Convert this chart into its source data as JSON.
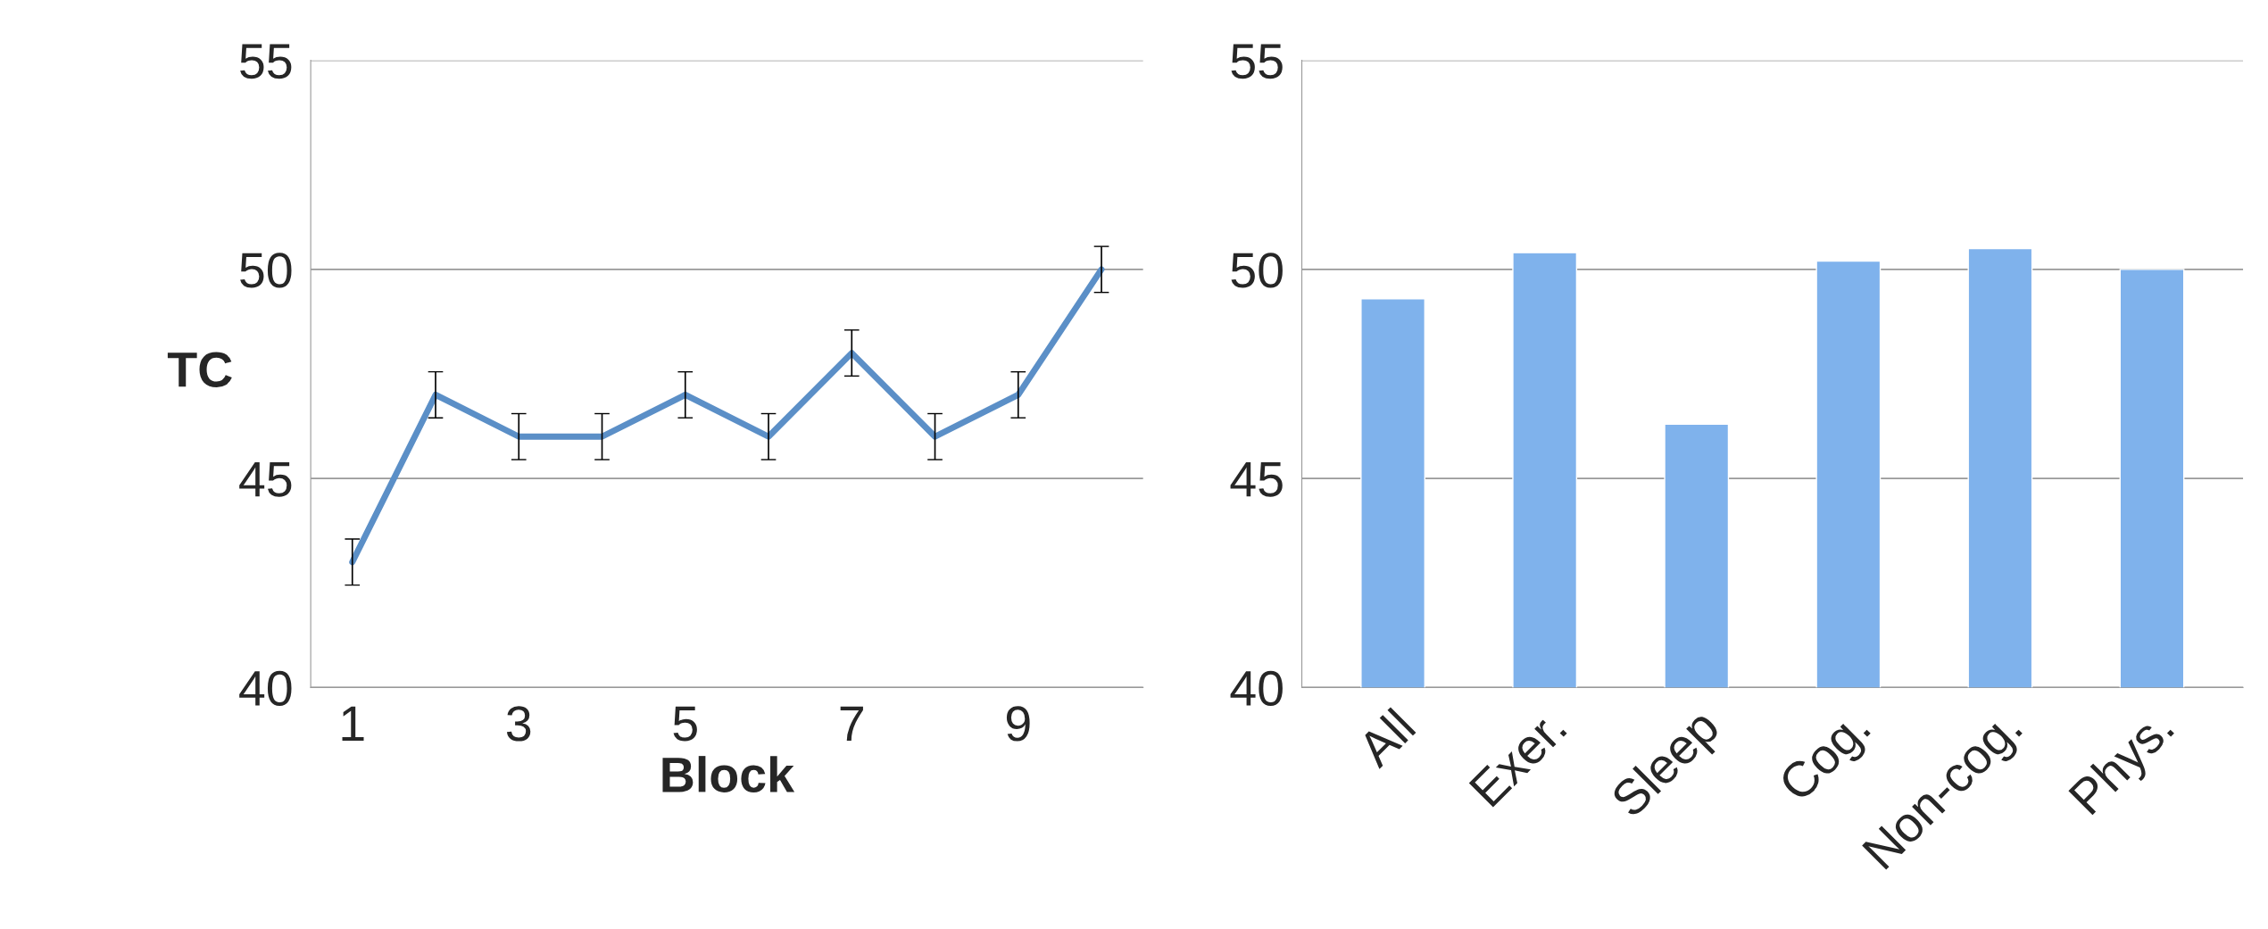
{
  "chart_data": [
    {
      "type": "line",
      "xlabel": "Block",
      "ylabel": "TC",
      "categories": [
        "1",
        null,
        "3",
        null,
        "5",
        null,
        "7",
        null,
        "9",
        null
      ],
      "series": [
        {
          "color": "#5b8fc7",
          "values": [
            43,
            47,
            46,
            46,
            47,
            46,
            48,
            46,
            47,
            50
          ],
          "errors": [
            0.55,
            0.55,
            0.55,
            0.55,
            0.55,
            0.55,
            0.55,
            0.55,
            0.55,
            0.55
          ]
        }
      ],
      "ylim": [
        40,
        55
      ],
      "yticks": [
        40,
        45,
        50,
        55
      ],
      "grid": "y",
      "marker": "none",
      "line_style": "solid",
      "legend": false
    },
    {
      "type": "bar",
      "categories": [
        "All",
        "Exer.",
        "Sleep",
        "Cog.",
        "Non-cog.",
        "Phys."
      ],
      "series": [
        {
          "color": "#7fb2ec",
          "values": [
            49.3,
            50.4,
            46.3,
            50.2,
            50.5,
            50.0
          ]
        }
      ],
      "ylim": [
        40,
        55
      ],
      "yticks": [
        40,
        45,
        50,
        55
      ],
      "grid": "y",
      "legend": false
    }
  ]
}
